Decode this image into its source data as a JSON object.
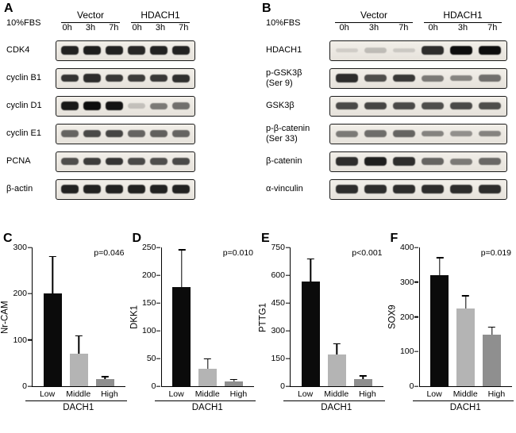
{
  "panelA": {
    "letter": "A",
    "condition": "10%FBS",
    "groups": [
      "Vector",
      "HDACH1"
    ],
    "timepoints": [
      "0h",
      "3h",
      "7h",
      "0h",
      "3h",
      "7h"
    ],
    "rows": [
      {
        "label": "CDK4",
        "bands": [
          0.9,
          0.92,
          0.9,
          0.88,
          0.9,
          0.9
        ]
      },
      {
        "label": "cyclin B1",
        "bands": [
          0.82,
          0.85,
          0.8,
          0.78,
          0.8,
          0.84
        ]
      },
      {
        "label": "cyclin D1",
        "bands": [
          0.95,
          1.0,
          0.97,
          0.18,
          0.5,
          0.55
        ]
      },
      {
        "label": "cyclin E1",
        "bands": [
          0.6,
          0.72,
          0.74,
          0.6,
          0.62,
          0.6
        ]
      },
      {
        "label": "PCNA",
        "bands": [
          0.7,
          0.78,
          0.82,
          0.72,
          0.7,
          0.72
        ]
      },
      {
        "label": "β-actin",
        "bands": [
          0.9,
          0.9,
          0.9,
          0.9,
          0.9,
          0.9
        ]
      }
    ]
  },
  "panelB": {
    "letter": "B",
    "condition": "10%FBS",
    "groups": [
      "Vector",
      "HDACH1"
    ],
    "timepoints": [
      "0h",
      "3h",
      "7h",
      "0h",
      "3h",
      "7h"
    ],
    "rows": [
      {
        "label": "HDACH1",
        "bands": [
          0.12,
          0.2,
          0.14,
          0.85,
          1.0,
          1.0
        ]
      },
      {
        "label": "p-GSK3β\n(Ser 9)",
        "bands": [
          0.85,
          0.7,
          0.8,
          0.5,
          0.45,
          0.55
        ]
      },
      {
        "label": "GSK3β",
        "bands": [
          0.72,
          0.74,
          0.72,
          0.7,
          0.72,
          0.7
        ]
      },
      {
        "label": "p-β-catenin\n(Ser 33)",
        "bands": [
          0.5,
          0.56,
          0.6,
          0.46,
          0.4,
          0.46
        ]
      },
      {
        "label": "β-catenin",
        "bands": [
          0.85,
          0.92,
          0.85,
          0.6,
          0.5,
          0.58
        ]
      },
      {
        "label": "α-vinculin",
        "bands": [
          0.85,
          0.85,
          0.85,
          0.85,
          0.85,
          0.85
        ]
      }
    ]
  },
  "chart_data": [
    {
      "type": "bar",
      "letter": "C",
      "ylabel": "Nr-CAM",
      "p_label": "p=0.046",
      "categories": [
        "Low",
        "Middle",
        "High"
      ],
      "values": [
        200,
        70,
        15
      ],
      "errors_top": [
        282,
        110,
        22
      ],
      "yticks": [
        0,
        100,
        200,
        300
      ],
      "ymax": 300,
      "xlabel": "DACH1",
      "bar_colors": [
        "#0b0b0b",
        "#b4b4b4",
        "#8f8f8f"
      ]
    },
    {
      "type": "bar",
      "letter": "D",
      "ylabel": "DKK1",
      "p_label": "p=0.010",
      "categories": [
        "Low",
        "Middle",
        "High"
      ],
      "values": [
        178,
        32,
        9
      ],
      "errors_top": [
        247,
        50,
        13
      ],
      "yticks": [
        0,
        50,
        100,
        150,
        200,
        250
      ],
      "ymax": 250,
      "xlabel": "DACH1",
      "bar_colors": [
        "#0b0b0b",
        "#b4b4b4",
        "#8f8f8f"
      ]
    },
    {
      "type": "bar",
      "letter": "E",
      "ylabel": "PTTG1",
      "p_label": "p<0.001",
      "categories": [
        "Low",
        "Middle",
        "High"
      ],
      "values": [
        565,
        170,
        40
      ],
      "errors_top": [
        690,
        232,
        58
      ],
      "yticks": [
        0,
        150,
        300,
        450,
        600,
        750
      ],
      "ymax": 750,
      "xlabel": "DACH1",
      "bar_colors": [
        "#0b0b0b",
        "#b4b4b4",
        "#8f8f8f"
      ]
    },
    {
      "type": "bar",
      "letter": "F",
      "ylabel": "SOX9",
      "p_label": "p=0.019",
      "categories": [
        "Low",
        "Middle",
        "High"
      ],
      "values": [
        320,
        225,
        148
      ],
      "errors_top": [
        372,
        262,
        172
      ],
      "yticks": [
        0,
        100,
        200,
        300,
        400
      ],
      "ymax": 400,
      "xlabel": "DACH1",
      "bar_colors": [
        "#0b0b0b",
        "#b4b4b4",
        "#8f8f8f"
      ]
    }
  ]
}
